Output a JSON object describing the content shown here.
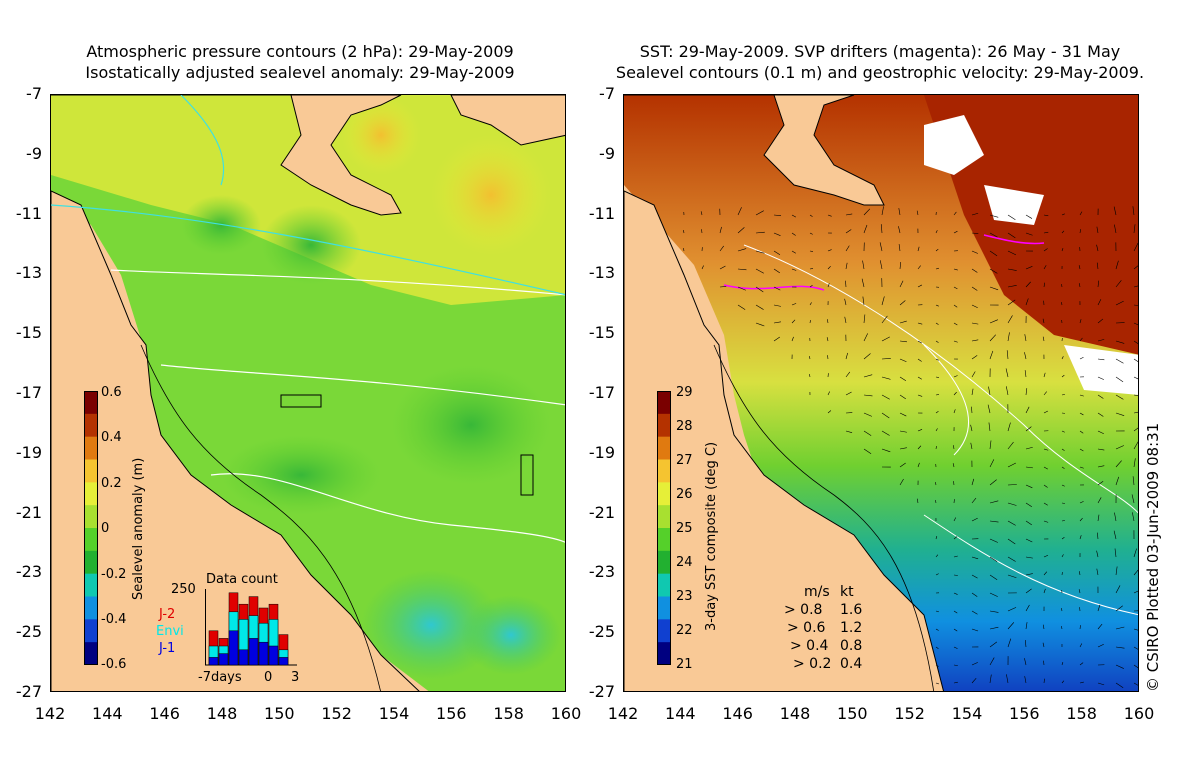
{
  "left_panel": {
    "title_line1": "Atmospheric pressure contours (2 hPa): 29-May-2009",
    "title_line2": "Isostatically adjusted sealevel anomaly: 29-May-2009",
    "colorbar": {
      "label": "Sealevel anomaly (m)",
      "ticks": [
        "0.6",
        "0.4",
        "0.2",
        "0",
        "-0.2",
        "-0.4",
        "-0.6"
      ],
      "colors": [
        "#7a0000",
        "#b43200",
        "#e07a10",
        "#f5c430",
        "#e6ef38",
        "#a8e030",
        "#55d02a",
        "#22b030",
        "#10c8b0",
        "#1090e0",
        "#1040d0",
        "#000080"
      ]
    },
    "data_count": {
      "title": "Data count",
      "max_label": "250",
      "x_start": "-7days",
      "x_zero": "0",
      "x_end": "3",
      "legend": [
        {
          "label": "J-2",
          "color": "#e00000"
        },
        {
          "label": "Envi",
          "color": "#00e8e8"
        },
        {
          "label": "J-1",
          "color": "#0000e0"
        }
      ],
      "bars": [
        {
          "j1": 0.1,
          "envi": 0.25,
          "j2": 0.45
        },
        {
          "j1": 0.15,
          "envi": 0.25,
          "j2": 0.35
        },
        {
          "j1": 0.45,
          "envi": 0.7,
          "j2": 0.95
        },
        {
          "j1": 0.2,
          "envi": 0.6,
          "j2": 0.8
        },
        {
          "j1": 0.35,
          "envi": 0.65,
          "j2": 0.9
        },
        {
          "j1": 0.3,
          "envi": 0.55,
          "j2": 0.75
        },
        {
          "j1": 0.25,
          "envi": 0.6,
          "j2": 0.8
        },
        {
          "j1": 0.1,
          "envi": 0.2,
          "j2": 0.4
        }
      ]
    }
  },
  "right_panel": {
    "title_line1": "SST: 29-May-2009. SVP drifters (magenta): 26 May - 31 May",
    "title_line2": "Sealevel contours (0.1 m) and geostrophic velocity: 29-May-2009.",
    "colorbar": {
      "label": "3-day SST composite (deg C)",
      "ticks": [
        "29",
        "28",
        "27",
        "26",
        "25",
        "24",
        "23",
        "22",
        "21"
      ],
      "colors": [
        "#7a0000",
        "#b43200",
        "#e07a10",
        "#f5c430",
        "#e6ef38",
        "#a8e030",
        "#55d02a",
        "#22b030",
        "#10c8b0",
        "#1090e0",
        "#1040d0",
        "#000080"
      ]
    },
    "velocity_legend": {
      "header_ms": "m/s",
      "header_kt": "kt",
      "rows": [
        {
          "ms": "0.8",
          "kt": "1.6"
        },
        {
          "ms": "0.6",
          "kt": "1.2"
        },
        {
          "ms": "0.4",
          "kt": "0.8"
        },
        {
          "ms": "0.2",
          "kt": "0.4"
        }
      ]
    },
    "credit": "© CSIRO Plotted 03-Jun-2009 08:31"
  },
  "axes": {
    "y_ticks": [
      "-7",
      "-9",
      "-11",
      "-13",
      "-15",
      "-17",
      "-19",
      "-21",
      "-23",
      "-25",
      "-27"
    ],
    "x_ticks": [
      "142",
      "144",
      "146",
      "148",
      "150",
      "152",
      "154",
      "156",
      "158",
      "160"
    ]
  },
  "colors": {
    "land": "#f9c996",
    "coast": "#000000",
    "pressure_contour": "#ffffff",
    "cyan_contour": "#40e0e0",
    "drifter": "#ff00ff"
  }
}
